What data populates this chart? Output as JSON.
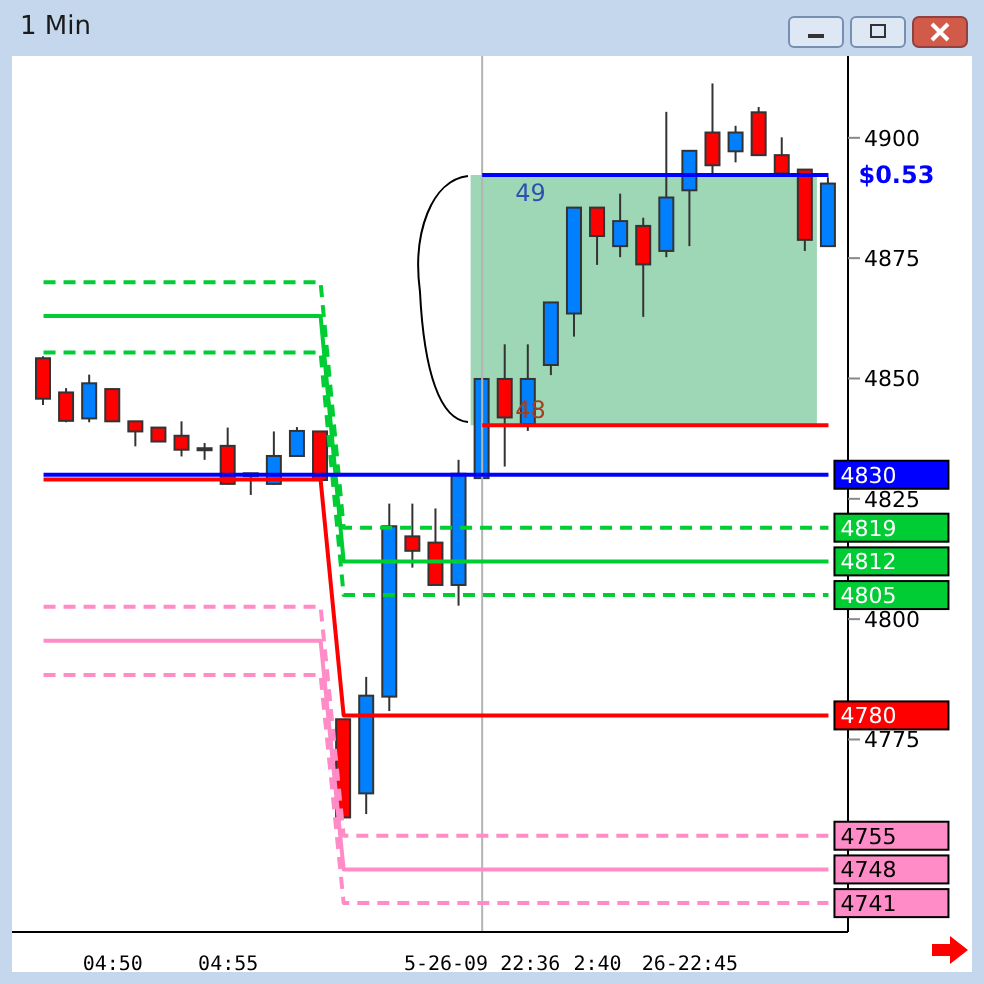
{
  "chart_data": {
    "type": "candlestick",
    "title": "1 Min",
    "categories": [
      null,
      null,
      null,
      "04:50",
      null,
      null,
      null,
      null,
      "04:55",
      null,
      null,
      null,
      null,
      null,
      null,
      null,
      null,
      null,
      null,
      "5-26-09 22:36",
      null,
      null,
      null,
      null,
      "2:40",
      null,
      null,
      null,
      "26-22:45",
      null,
      null,
      null,
      null,
      null,
      null
    ],
    "ohlc": [
      [
        4854.2,
        4854.6,
        4844.5,
        4845.8
      ],
      [
        4847.1,
        4848,
        4840.9,
        4841.2
      ],
      [
        4841.7,
        4850.8,
        4840.9,
        4849
      ],
      [
        4847.8,
        4848,
        4841,
        4841.1
      ],
      [
        4841.1,
        4841.1,
        4835.9,
        4839
      ],
      [
        4839.8,
        4839.8,
        4836.9,
        4836.9
      ],
      [
        4838.1,
        4841.1,
        4833.8,
        4835.2
      ],
      [
        4835.3,
        4836.6,
        4833.1,
        4835.3
      ],
      [
        4836,
        4839.8,
        4828,
        4828.1
      ],
      [
        4829.7,
        4830.3,
        4825.8,
        4830.3
      ],
      [
        4828.1,
        4839,
        4827.9,
        4833.9
      ],
      [
        4833.9,
        4839.9,
        4833.9,
        4839.1
      ],
      [
        4839,
        4839,
        4828.9,
        4828.9
      ],
      [
        4779.2,
        4779.2,
        4758.8,
        4758.8
      ],
      [
        4763.8,
        4788,
        4759.5,
        4784.1
      ],
      [
        4783.9,
        4824,
        4780.9,
        4819.3
      ],
      [
        4817.2,
        4824,
        4810.7,
        4814.2
      ],
      [
        4815.9,
        4823,
        4807.1,
        4807.1
      ],
      [
        4807.1,
        4833.1,
        4802.8,
        4830.2
      ],
      [
        4829.3,
        4849.9,
        4829.3,
        4849.9
      ],
      [
        4849.9,
        4857.1,
        4831.7,
        4841.9
      ],
      [
        4840.5,
        4857.1,
        4839.1,
        4849.9
      ],
      [
        4852.8,
        4865.8,
        4850.7,
        4865.8
      ],
      [
        4863.5,
        4885.5,
        4858.7,
        4885.5
      ],
      [
        4885.5,
        4885.5,
        4873.6,
        4879.6
      ],
      [
        4877.5,
        4888.4,
        4875.2,
        4882.7
      ],
      [
        4881.7,
        4883.4,
        4862.8,
        4873.7
      ],
      [
        4876.5,
        4905.4,
        4875.2,
        4887.6
      ],
      [
        4889.1,
        4897.3,
        4877.5,
        4897.3
      ],
      [
        4901.1,
        4911.3,
        4892.6,
        4894.3
      ],
      [
        4897.2,
        4902.5,
        4894.9,
        4901.1
      ],
      [
        4905.3,
        4906.4,
        4896.4,
        4896.4
      ],
      [
        4896.4,
        4900.1,
        4892.6,
        4892.6
      ],
      [
        4893.4,
        4893.4,
        4876.5,
        4878.8
      ],
      [
        4877.5,
        4891.8,
        4877.5,
        4890.5
      ]
    ],
    "colors": [
      "#ff0000",
      "#ff0000",
      "#0080ff",
      "#ff0000",
      "#ff0000",
      "#ff0000",
      "#ff0000",
      "#0080ff",
      "#ff0000",
      "#0080ff",
      "#0080ff",
      "#0080ff",
      "#ff0000",
      "#ff0000",
      "#0080ff",
      "#0080ff",
      "#ff0000",
      "#ff0000",
      "#0080ff",
      "#0080ff",
      "#ff0000",
      "#0080ff",
      "#0080ff",
      "#0080ff",
      "#ff0000",
      "#0080ff",
      "#ff0000",
      "#0080ff",
      "#0080ff",
      "#ff0000",
      "#0080ff",
      "#ff0000",
      "#ff0000",
      "#ff0000",
      "#0080ff"
    ],
    "series": [
      {
        "type": "line",
        "color": "#00cc33",
        "line_style": "dashed",
        "values": [
          4870,
          4870,
          4870,
          4870,
          4870,
          4870,
          4870,
          4870,
          4870,
          4870,
          4870,
          4870,
          4870,
          4819,
          4819,
          4819,
          4819,
          4819,
          4819,
          4819,
          4819,
          4819,
          4819,
          4819,
          4819,
          4819,
          4819,
          4819,
          4819,
          4819,
          4819,
          4819,
          4819,
          4819,
          4819
        ],
        "value_labels": [
          null,
          null,
          null,
          null,
          null,
          null,
          null,
          null,
          null,
          null,
          null,
          null,
          null,
          null,
          null,
          null,
          null,
          null,
          null,
          null,
          null,
          null,
          null,
          null,
          null,
          null,
          null,
          null,
          null,
          null,
          null,
          null,
          null,
          null,
          "4819"
        ]
      },
      {
        "type": "line",
        "color": "#00cc33",
        "line_style": "solid",
        "values": [
          4863,
          4863,
          4863,
          4863,
          4863,
          4863,
          4863,
          4863,
          4863,
          4863,
          4863,
          4863,
          4863,
          4812,
          4812,
          4812,
          4812,
          4812,
          4812,
          4812,
          4812,
          4812,
          4812,
          4812,
          4812,
          4812,
          4812,
          4812,
          4812,
          4812,
          4812,
          4812,
          4812,
          4812,
          4812
        ],
        "value_labels": [
          null,
          null,
          null,
          null,
          null,
          null,
          null,
          null,
          null,
          null,
          null,
          null,
          null,
          null,
          null,
          null,
          null,
          null,
          null,
          null,
          null,
          null,
          null,
          null,
          null,
          null,
          null,
          null,
          null,
          null,
          null,
          null,
          null,
          null,
          "4812"
        ]
      },
      {
        "type": "line",
        "color": "#00cc33",
        "line_style": "dashed",
        "values": [
          4855.4,
          4855.4,
          4855.4,
          4855.4,
          4855.4,
          4855.4,
          4855.4,
          4855.4,
          4855.4,
          4855.4,
          4855.4,
          4855.4,
          4855.4,
          4805,
          4805,
          4805,
          4805,
          4805,
          4805,
          4805,
          4805,
          4805,
          4805,
          4805,
          4805,
          4805,
          4805,
          4805,
          4805,
          4805,
          4805,
          4805,
          4805,
          4805,
          4805
        ],
        "value_labels": [
          null,
          null,
          null,
          null,
          null,
          null,
          null,
          null,
          null,
          null,
          null,
          null,
          null,
          null,
          null,
          null,
          null,
          null,
          null,
          null,
          null,
          null,
          null,
          null,
          null,
          null,
          null,
          null,
          null,
          null,
          null,
          null,
          null,
          null,
          "4805"
        ]
      },
      {
        "type": "line",
        "color": "#ff8cc6",
        "line_style": "dashed",
        "values": [
          4802.6,
          4802.6,
          4802.6,
          4802.6,
          4802.6,
          4802.6,
          4802.6,
          4802.6,
          4802.6,
          4802.6,
          4802.6,
          4802.6,
          4802.6,
          4755,
          4755,
          4755,
          4755,
          4755,
          4755,
          4755,
          4755,
          4755,
          4755,
          4755,
          4755,
          4755,
          4755,
          4755,
          4755,
          4755,
          4755,
          4755,
          4755,
          4755,
          4755
        ],
        "value_labels": [
          null,
          null,
          null,
          null,
          null,
          null,
          null,
          null,
          null,
          null,
          null,
          null,
          null,
          null,
          null,
          null,
          null,
          null,
          null,
          null,
          null,
          null,
          null,
          null,
          null,
          null,
          null,
          null,
          null,
          null,
          null,
          null,
          null,
          null,
          "4755"
        ]
      },
      {
        "type": "line",
        "color": "#ff8cc6",
        "line_style": "solid",
        "values": [
          4795.5,
          4795.5,
          4795.5,
          4795.5,
          4795.5,
          4795.5,
          4795.5,
          4795.5,
          4795.5,
          4795.5,
          4795.5,
          4795.5,
          4795.5,
          4748,
          4748,
          4748,
          4748,
          4748,
          4748,
          4748,
          4748,
          4748,
          4748,
          4748,
          4748,
          4748,
          4748,
          4748,
          4748,
          4748,
          4748,
          4748,
          4748,
          4748,
          4748
        ],
        "value_labels": [
          null,
          null,
          null,
          null,
          null,
          null,
          null,
          null,
          null,
          null,
          null,
          null,
          null,
          null,
          null,
          null,
          null,
          null,
          null,
          null,
          null,
          null,
          null,
          null,
          null,
          null,
          null,
          null,
          null,
          null,
          null,
          null,
          null,
          null,
          "4748"
        ]
      },
      {
        "type": "line",
        "color": "#ff8cc6",
        "line_style": "dashed",
        "values": [
          4788.4,
          4788.4,
          4788.4,
          4788.4,
          4788.4,
          4788.4,
          4788.4,
          4788.4,
          4788.4,
          4788.4,
          4788.4,
          4788.4,
          4788.4,
          4741,
          4741,
          4741,
          4741,
          4741,
          4741,
          4741,
          4741,
          4741,
          4741,
          4741,
          4741,
          4741,
          4741,
          4741,
          4741,
          4741,
          4741,
          4741,
          4741,
          4741,
          4741
        ],
        "value_labels": [
          null,
          null,
          null,
          null,
          null,
          null,
          null,
          null,
          null,
          null,
          null,
          null,
          null,
          null,
          null,
          null,
          null,
          null,
          null,
          null,
          null,
          null,
          null,
          null,
          null,
          null,
          null,
          null,
          null,
          null,
          null,
          null,
          null,
          null,
          "4741"
        ]
      },
      {
        "type": "line",
        "color": "#ff0000",
        "line_style": "solid",
        "values": [
          4829,
          4829,
          4829,
          4829,
          4829,
          4829,
          4829,
          4829,
          4829,
          4829,
          4829,
          4829,
          4829,
          4780,
          4780,
          4780,
          4780,
          4780,
          4780,
          4780,
          4780,
          4780,
          4780,
          4780,
          4780,
          4780,
          4780,
          4780,
          4780,
          4780,
          4780,
          4780,
          4780,
          4780,
          4780
        ],
        "value_labels": [
          null,
          null,
          null,
          null,
          null,
          null,
          null,
          null,
          null,
          null,
          null,
          null,
          null,
          null,
          null,
          null,
          null,
          null,
          null,
          null,
          null,
          null,
          null,
          null,
          null,
          null,
          null,
          null,
          null,
          null,
          null,
          null,
          null,
          null,
          "4780"
        ]
      },
      {
        "type": "line",
        "color": "#0000ff",
        "line_style": "solid",
        "values": [
          4830,
          4830,
          4830,
          4830,
          4830,
          4830,
          4830,
          4830,
          4830,
          4830,
          4830,
          4830,
          4830,
          4830,
          4830,
          4830,
          4830,
          4830,
          4830,
          4830,
          4830,
          4830,
          4830,
          4830,
          4830,
          4830,
          4830,
          4830,
          4830,
          4830,
          4830,
          4830,
          4830,
          4830,
          4830
        ],
        "value_labels": [
          null,
          null,
          null,
          null,
          null,
          null,
          null,
          null,
          null,
          null,
          null,
          null,
          null,
          null,
          null,
          null,
          null,
          null,
          null,
          null,
          null,
          null,
          null,
          null,
          null,
          null,
          null,
          null,
          null,
          null,
          null,
          null,
          null,
          null,
          "4830"
        ]
      },
      {
        "type": "line",
        "color": "#ff0000",
        "line_style": "solid",
        "values": [
          null,
          null,
          null,
          null,
          null,
          null,
          null,
          null,
          null,
          null,
          null,
          null,
          null,
          null,
          null,
          null,
          null,
          null,
          null,
          4840.3,
          4840.3,
          4840.3,
          4840.3,
          4840.3,
          4840.3,
          4840.3,
          4840.3,
          4840.3,
          4840.3,
          4840.3,
          4840.3,
          4840.3,
          4840.3,
          4840.3,
          4840.3
        ]
      },
      {
        "type": "line",
        "color": "#0000ff",
        "line_style": "solid",
        "values": [
          null,
          null,
          null,
          null,
          null,
          null,
          null,
          null,
          null,
          null,
          null,
          null,
          null,
          null,
          null,
          null,
          null,
          null,
          null,
          4892.3,
          4892.3,
          4892.3,
          4892.3,
          4892.3,
          4892.3,
          4892.3,
          4892.3,
          4892.3,
          4892.3,
          4892.3,
          4892.3,
          4892.3,
          4892.3,
          4892.3,
          4892.3
        ]
      }
    ],
    "bands": [
      {
        "axis": "y",
        "from": 4840.3,
        "to": 4892.3,
        "color": "#3daf6e"
      }
    ],
    "annotations": [
      "49",
      "48",
      "$0.53"
    ],
    "ref_lines": [
      {
        "axis": "x",
        "value": "5-26-09 22:36",
        "color": "#b4b4b4"
      }
    ],
    "ylim": [
      4735,
      4917
    ],
    "yticks": [
      4775,
      4800,
      4825,
      4850,
      4875,
      4900
    ]
  }
}
